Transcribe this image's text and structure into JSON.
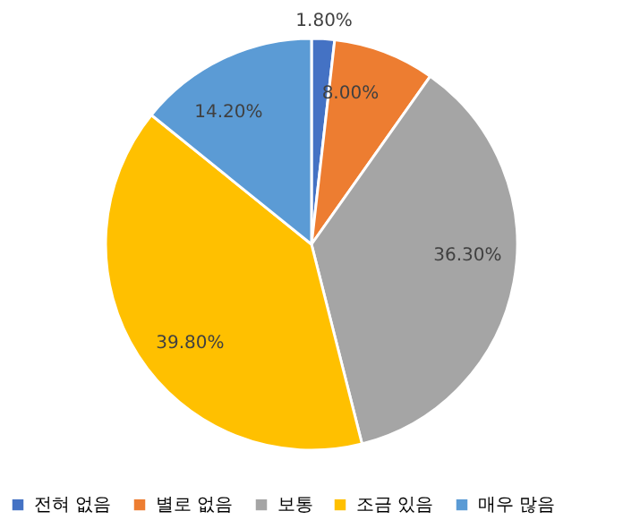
{
  "chart_data": {
    "type": "pie",
    "categories": [
      "전혀 없음",
      "별로 없음",
      "보통",
      "조금 있음",
      "매우 많음"
    ],
    "values": [
      1.8,
      8.0,
      36.3,
      39.8,
      14.2
    ],
    "value_labels": [
      "1.80%",
      "8.00%",
      "36.30%",
      "39.80%",
      "14.20%"
    ],
    "colors": [
      "#4472c4",
      "#ed7d31",
      "#a5a5a5",
      "#ffc000",
      "#5b9bd5"
    ],
    "legend": "bottom"
  }
}
